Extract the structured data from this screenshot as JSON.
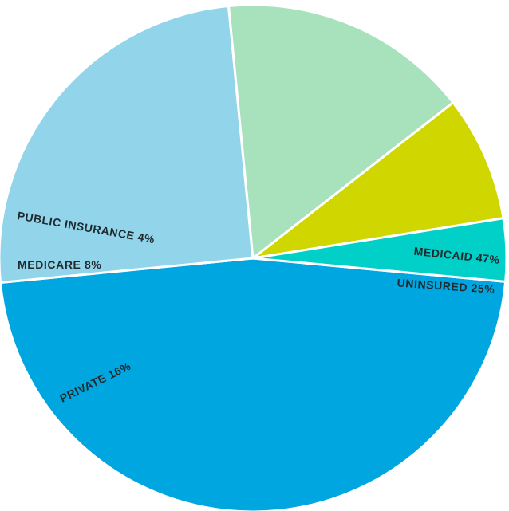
{
  "chart_data": {
    "type": "pie",
    "title": "",
    "slices": [
      {
        "label": "MEDICAID 47%",
        "name": "MEDICAID",
        "value": 47,
        "color": "#00a6df"
      },
      {
        "label": "UNINSURED 25%",
        "name": "UNINSURED",
        "value": 25,
        "color": "#92d4ea"
      },
      {
        "label": "PRIVATE 16%",
        "name": "PRIVATE",
        "value": 16,
        "color": "#a8e2bd"
      },
      {
        "label": "MEDICARE 8%",
        "name": "MEDICARE",
        "value": 8,
        "color": "#d0d600"
      },
      {
        "label": "PUBLIC INSURANCE 4%",
        "name": "PUBLIC INSURANCE",
        "value": 4,
        "color": "#00d0c7"
      }
    ]
  }
}
